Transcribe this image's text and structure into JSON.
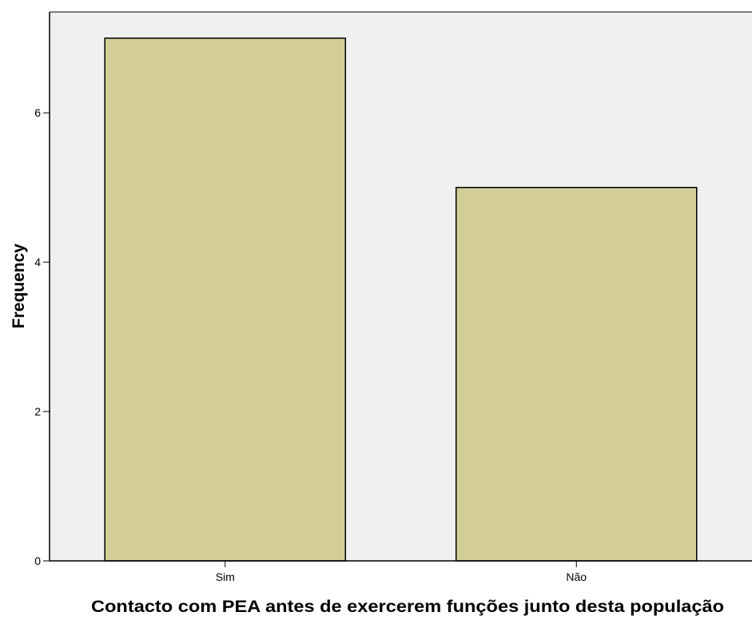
{
  "chart_data": {
    "type": "bar",
    "categories": [
      "Sim",
      "Não"
    ],
    "values": [
      7,
      5
    ],
    "title": "",
    "xlabel": "Contacto com PEA antes de exercerem funções junto desta população",
    "ylabel": "Frequency",
    "ylim": [
      0,
      7.35
    ],
    "yticks": [
      0,
      2,
      4,
      6
    ],
    "grid": false,
    "legend": "none",
    "colors": {
      "bar_fill": "#d3cd98",
      "bar_stroke": "#000000",
      "plot_background": "#f0f0f0",
      "axis": "#000000"
    }
  }
}
